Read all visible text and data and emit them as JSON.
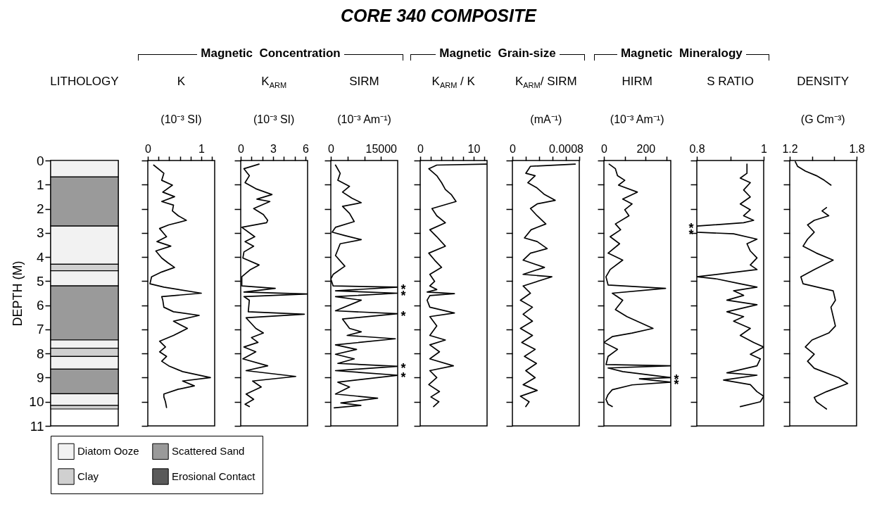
{
  "chart_data": [
    {
      "type": "other",
      "title": "CORE 340 COMPOSITE",
      "annotations": [
        "Magnetic  Concentration",
        "Magnetic  Grain-size",
        "Magnetic  Mineralogy"
      ]
    },
    {
      "type": "bar",
      "stacked": true,
      "title": "LITHOLOGY",
      "ylabel": "DEPTH  (M)",
      "ylim": [
        11,
        0
      ],
      "yticks": [
        0,
        1,
        2,
        3,
        4,
        5,
        6,
        7,
        8,
        9,
        10,
        11
      ],
      "legend": "bottom",
      "categories": [
        null
      ],
      "series": [
        {
          "name": "Diatom Ooze",
          "color": "#f2f2f2",
          "values": [
            0.68
          ]
        },
        {
          "name": "Scattered Sand",
          "color": "#9a9a9a",
          "values": [
            2.04
          ]
        },
        {
          "color": "#f2f2f2",
          "values": [
            1.58
          ]
        },
        {
          "name": "Clay",
          "color": "#d0d0d0",
          "values": [
            0.27
          ]
        },
        {
          "color": "#f2f2f2",
          "values": [
            0.63
          ]
        },
        {
          "color": "#9a9a9a",
          "values": [
            2.24
          ]
        },
        {
          "color": "#f2f2f2",
          "values": [
            0.34
          ]
        },
        {
          "color": "#d0d0d0",
          "values": [
            0.34
          ]
        },
        {
          "color": "#f2f2f2",
          "values": [
            0.53
          ]
        },
        {
          "color": "#9a9a9a",
          "values": [
            1.02
          ]
        },
        {
          "color": "#f2f2f2",
          "values": [
            0.48
          ]
        },
        {
          "color": "#d0d0d0",
          "values": [
            0.15
          ]
        },
        {
          "name": "Erosional Contact",
          "color": "#5a5a5a",
          "values": [
            null
          ]
        }
      ]
    },
    {
      "type": "line",
      "title": "K",
      "xlabel": "(10⁻³ SI)",
      "orientation": "horizontal",
      "tick_labels": "x",
      "xlim": [
        0,
        1.25
      ],
      "xticks": [
        0,
        {
          "value": 0.2,
          "label": null
        },
        {
          "value": 0.4,
          "label": null
        },
        {
          "value": 0.6,
          "label": null
        },
        {
          "value": 0.8,
          "label": null
        },
        1,
        {
          "value": 1.2,
          "label": null
        }
      ],
      "ylim": [
        11,
        0
      ],
      "yticks": [
        0,
        1,
        2,
        3,
        4,
        5,
        6,
        7,
        8,
        9,
        10,
        11
      ],
      "x": [
        0.19,
        0.53,
        0.82,
        1.02,
        1.31,
        1.5,
        1.7,
        1.85,
        2.09,
        2.29,
        2.48,
        2.67,
        2.82,
        3.16,
        3.36,
        3.55,
        3.75,
        4.04,
        4.23,
        4.43,
        4.62,
        4.82,
        5.11,
        5.25,
        5.5,
        5.64,
        5.79,
        6.08,
        6.27,
        6.42,
        6.66,
        6.96,
        7.25,
        7.49,
        7.73,
        7.93,
        8.12,
        8.32,
        8.51,
        8.75,
        9.0,
        9.14,
        9.34,
        9.48,
        9.68,
        9.8,
        10.0,
        10.24
      ],
      "series": [
        {
          "color": "#000000",
          "values": [
            0.11,
            0.3,
            0.26,
            0.46,
            0.28,
            0.5,
            0.26,
            0.48,
            0.46,
            0.57,
            0.72,
            0.39,
            0.22,
            0.35,
            0.17,
            0.43,
            0.15,
            0.26,
            0.37,
            0.5,
            0.26,
            0.07,
            0.04,
            0.3,
            1.0,
            0.26,
            0.28,
            0.3,
            0.48,
            0.96,
            0.48,
            0.74,
            0.48,
            0.22,
            0.33,
            0.22,
            0.35,
            0.26,
            0.39,
            0.65,
            1.17,
            0.65,
            0.87,
            0.57,
            0.3,
            0.3,
            0.33,
            0.35
          ]
        }
      ]
    },
    {
      "type": "line",
      "title": "K$_{ARM}$",
      "xlabel": "(10⁻³ SI)",
      "orientation": "horizontal",
      "tick_labels": "x",
      "xlim": [
        0,
        6.2
      ],
      "xticks": [
        0,
        {
          "value": 1,
          "label": null
        },
        {
          "value": 2,
          "label": null
        },
        3,
        {
          "value": 4,
          "label": null
        },
        {
          "value": 5,
          "label": null
        },
        6
      ],
      "ylim": [
        11,
        0
      ],
      "yticks": [
        0,
        1,
        2,
        3,
        4,
        5,
        6,
        7,
        8,
        9,
        10,
        11
      ],
      "x": [
        0.15,
        0.34,
        0.63,
        0.92,
        1.17,
        1.41,
        1.6,
        1.7,
        1.99,
        2.24,
        2.48,
        2.58,
        2.77,
        3.16,
        3.36,
        3.55,
        3.79,
        4.04,
        4.33,
        4.52,
        4.82,
        5.2,
        5.3,
        5.45,
        5.53,
        5.64,
        5.79,
        6.27,
        6.37,
        6.52,
        6.96,
        7.15,
        7.34,
        7.54,
        7.73,
        7.93,
        8.22,
        8.51,
        8.71,
        8.95,
        9.14,
        9.39,
        9.68,
        9.9,
        10.1,
        10.2
      ],
      "series": [
        {
          "color": "#000000",
          "values": [
            1.7,
            0.3,
            0.8,
            0.4,
            1.4,
            2.9,
            1.5,
            2.7,
            1.2,
            2.1,
            2.5,
            2.4,
            0.1,
            1.3,
            0.4,
            1.2,
            0.3,
            0.2,
            1.7,
            0.9,
            0.1,
            0.1,
            3.2,
            0.3,
            6.2,
            0.3,
            0.8,
            0.7,
            5.9,
            0.5,
            1.4,
            2.1,
            1.0,
            1.6,
            0.3,
            1.4,
            0.2,
            2.5,
            0.5,
            5.1,
            1.1,
            1.9,
            0.5,
            1.2,
            0.4,
            0.8
          ]
        }
      ]
    },
    {
      "type": "line",
      "title": "SIRM",
      "xlabel": "(10⁻³ Am⁻¹)",
      "orientation": "horizontal",
      "tick_labels": "x",
      "xlim": [
        0,
        20000
      ],
      "xticks": [
        0,
        {
          "value": 5000,
          "label": null
        },
        {
          "value": 10000,
          "label": null
        },
        15000
      ],
      "ylim": [
        11,
        0
      ],
      "yticks": [
        0,
        1,
        2,
        3,
        4,
        5,
        6,
        7,
        8,
        9,
        10,
        11
      ],
      "x": [
        0.19,
        0.53,
        0.82,
        1.07,
        1.31,
        1.56,
        1.75,
        1.9,
        2.19,
        2.53,
        2.77,
        2.97,
        3.11,
        3.28,
        3.45,
        3.7,
        3.94,
        4.38,
        4.72,
        4.91,
        5.2,
        5.25,
        5.4,
        5.5,
        5.64,
        5.79,
        6.23,
        6.35,
        6.57,
        6.96,
        7.1,
        7.25,
        7.39,
        7.64,
        7.83,
        8.03,
        8.22,
        8.41,
        8.53,
        8.71,
        8.9,
        9.19,
        9.39,
        9.68,
        9.85,
        10.05,
        10.15,
        10.25
      ],
      "series": [
        {
          "color": "#000000",
          "values": [
            1400,
            2800,
            2100,
            5600,
            3500,
            6300,
            9100,
            3500,
            5600,
            7000,
            1400,
            400,
            4200,
            9100,
            2800,
            2100,
            1400,
            4200,
            700,
            0,
            700,
            20000,
            1400,
            20000,
            1400,
            9100,
            1400,
            20000,
            3500,
            5600,
            9100,
            4900,
            19300,
            1400,
            7700,
            1400,
            7000,
            2100,
            20000,
            1400,
            20000,
            2100,
            5600,
            1400,
            14000,
            3000,
            9000,
            1000
          ]
        }
      ],
      "annotations": [
        {
          "text": "*",
          "x": 20000,
          "y": 5.25
        },
        {
          "text": "*",
          "x": 20000,
          "y": 5.5
        },
        {
          "text": "*",
          "x": 20000,
          "y": 6.35
        },
        {
          "text": "*",
          "x": 20000,
          "y": 8.53
        },
        {
          "text": "*",
          "x": 20000,
          "y": 8.9
        }
      ]
    },
    {
      "type": "line",
      "title": "K$_{ARM}$ / K",
      "orientation": "horizontal",
      "tick_labels": "x",
      "xlim": [
        0,
        12.5
      ],
      "xticks": [
        0,
        {
          "value": 2,
          "label": null
        },
        {
          "value": 4,
          "label": null
        },
        {
          "value": 6,
          "label": null
        },
        {
          "value": 8,
          "label": null
        },
        10,
        {
          "value": 12,
          "label": null
        }
      ],
      "ylim": [
        11,
        0
      ],
      "yticks": [
        0,
        1,
        2,
        3,
        4,
        5,
        6,
        7,
        8,
        9,
        10,
        11
      ],
      "x": [
        0.15,
        0.19,
        0.34,
        0.63,
        0.92,
        1.2,
        1.41,
        1.7,
        1.99,
        2.29,
        2.58,
        2.87,
        3.16,
        3.55,
        3.84,
        4.13,
        4.43,
        4.72,
        5.01,
        5.2,
        5.35,
        5.45,
        5.52,
        5.6,
        5.79,
        6.08,
        6.32,
        6.47,
        6.86,
        7.25,
        7.44,
        7.64,
        7.93,
        8.22,
        8.51,
        8.71,
        9.0,
        9.29,
        9.58,
        9.8,
        10.0,
        10.2
      ],
      "series": [
        {
          "color": "#000000",
          "values": [
            12.4,
            3.1,
            1.6,
            3.1,
            4.0,
            4.7,
            5.8,
            6.7,
            2.2,
            3.1,
            4.7,
            1.8,
            3.1,
            4.7,
            1.6,
            2.7,
            4.0,
            1.8,
            2.7,
            1.8,
            3.1,
            1.3,
            6.4,
            1.8,
            1.3,
            1.8,
            6.4,
            1.8,
            3.1,
            1.8,
            4.7,
            1.8,
            3.6,
            1.8,
            6.2,
            1.8,
            3.1,
            1.6,
            3.6,
            2.0,
            3.5,
            2.5
          ]
        }
      ]
    },
    {
      "type": "line",
      "title": "K$_{ARM}$/ SIRM",
      "xlabel": "(mA⁻¹)",
      "orientation": "horizontal",
      "tick_labels": "x",
      "xlim": [
        0,
        0.001
      ],
      "xticks": [
        0,
        {
          "value": 0.0002,
          "label": null
        },
        {
          "value": 0.0004,
          "label": null
        },
        {
          "value": 0.0006,
          "label": null
        },
        0.0008,
        {
          "value": 0.001,
          "label": null
        }
      ],
      "ylim": [
        11,
        0
      ],
      "yticks": [
        0,
        1,
        2,
        3,
        4,
        5,
        6,
        7,
        8,
        9,
        10,
        11
      ],
      "x": [
        0.15,
        0.24,
        0.53,
        0.63,
        0.92,
        1.12,
        1.41,
        1.65,
        1.8,
        1.99,
        2.29,
        2.63,
        2.87,
        3.21,
        3.36,
        3.65,
        3.84,
        4.13,
        4.43,
        4.72,
        4.82,
        5.2,
        5.5,
        5.79,
        6.08,
        6.37,
        6.66,
        6.96,
        7.25,
        7.54,
        7.83,
        8.12,
        8.41,
        8.71,
        9.0,
        9.29,
        9.53,
        9.77,
        10.0,
        10.2
      ],
      "series": [
        {
          "color": "#000000",
          "values": [
            0.00094,
            0.00027,
            0.0002,
            0.00034,
            0.00023,
            0.00036,
            0.00048,
            0.00064,
            0.00037,
            0.00027,
            0.00037,
            0.0005,
            0.00028,
            0.00018,
            0.00037,
            0.00052,
            0.00027,
            0.00016,
            0.00048,
            0.00016,
            0.00059,
            0.00016,
            0.00027,
            0.00012,
            0.0003,
            0.00016,
            0.0003,
            0.00012,
            0.0003,
            0.00014,
            0.00034,
            0.00018,
            0.00036,
            0.0002,
            0.00034,
            0.00016,
            0.00037,
            0.00012,
            0.00025,
            0.0002
          ]
        }
      ]
    },
    {
      "type": "line",
      "title": "HIRM",
      "xlabel": "(10⁻³ Am⁻¹)",
      "orientation": "horizontal",
      "tick_labels": "x",
      "xlim": [
        0,
        320
      ],
      "xticks": [
        0,
        {
          "value": 100,
          "label": null
        },
        200,
        {
          "value": 300,
          "label": null
        }
      ],
      "ylim": [
        11,
        0
      ],
      "yticks": [
        0,
        1,
        2,
        3,
        4,
        5,
        6,
        7,
        8,
        9,
        10,
        11
      ],
      "x": [
        0.15,
        0.34,
        0.63,
        0.82,
        1.02,
        1.31,
        1.6,
        1.8,
        2.04,
        2.29,
        2.63,
        2.87,
        3.16,
        3.45,
        3.84,
        4.13,
        4.52,
        4.82,
        5.16,
        5.3,
        5.5,
        5.79,
        6.18,
        6.47,
        6.96,
        7.15,
        7.3,
        7.54,
        7.83,
        8.12,
        8.46,
        8.51,
        8.6,
        8.75,
        9.0,
        9.05,
        9.19,
        9.3,
        9.5,
        9.7,
        9.9,
        10.1,
        10.2
      ],
      "series": [
        {
          "color": "#000000",
          "values": [
            25,
            55,
            65,
            100,
            70,
            160,
            90,
            135,
            100,
            120,
            55,
            80,
            30,
            75,
            20,
            90,
            30,
            10,
            20,
            295,
            40,
            90,
            55,
            110,
            235,
            135,
            40,
            0,
            65,
            20,
            10,
            320,
            20,
            90,
            320,
            170,
            320,
            135,
            40,
            20,
            10,
            20,
            40
          ]
        }
      ],
      "annotations": [
        {
          "text": "*",
          "x": 320,
          "y": 9.0
        },
        {
          "text": "*",
          "x": 320,
          "y": 9.19
        }
      ]
    },
    {
      "type": "line",
      "title": "S RATIO",
      "orientation": "horizontal",
      "tick_labels": "x",
      "xlim": [
        0.8,
        1
      ],
      "xticks": [
        0.8,
        {
          "value": 0.9,
          "label": null
        },
        1
      ],
      "ylim": [
        11,
        0
      ],
      "yticks": [
        0,
        1,
        2,
        3,
        4,
        5,
        6,
        7,
        8,
        9,
        10,
        11
      ],
      "x": [
        0.15,
        0.53,
        0.73,
        0.92,
        1.22,
        1.51,
        1.8,
        2.04,
        2.29,
        2.48,
        2.58,
        2.72,
        2.97,
        3.04,
        3.26,
        3.45,
        3.75,
        4.04,
        4.33,
        4.52,
        4.82,
        4.91,
        5.11,
        5.25,
        5.4,
        5.59,
        5.79,
        5.98,
        6.27,
        6.47,
        6.66,
        6.96,
        7.25,
        7.54,
        7.73,
        8.03,
        8.22,
        8.51,
        8.8,
        8.9,
        9.1,
        9.29,
        9.58,
        9.77,
        10.0,
        10.2
      ],
      "series": [
        {
          "color": "#000000",
          "values": [
            0.95,
            0.95,
            0.93,
            0.96,
            0.94,
            0.96,
            0.93,
            0.96,
            0.94,
            0.97,
            0.94,
            0.8,
            0.8,
            0.91,
            0.98,
            0.95,
            0.96,
            0.98,
            0.96,
            0.98,
            0.8,
            0.86,
            0.93,
            0.98,
            0.91,
            0.94,
            0.89,
            0.98,
            0.89,
            0.94,
            0.91,
            0.96,
            0.93,
            0.97,
            1.0,
            0.96,
            0.99,
            0.98,
            0.89,
            0.98,
            0.88,
            0.96,
            0.98,
            1.0,
            0.99,
            0.93
          ]
        }
      ],
      "annotations": [
        {
          "text": "*",
          "x": 0.8,
          "y": 2.72
        },
        {
          "text": "*",
          "x": 0.8,
          "y": 2.97
        }
      ]
    },
    {
      "type": "line",
      "title": "DENSITY",
      "xlabel": "(G Cm⁻³)",
      "orientation": "horizontal",
      "tick_labels": "x",
      "xlim": [
        1.2,
        1.8
      ],
      "xticks": [
        1.2,
        {
          "value": 1.4,
          "label": null
        },
        {
          "value": 1.6,
          "label": null
        },
        1.8
      ],
      "ylim": [
        11,
        0
      ],
      "yticks": [
        0,
        1,
        2,
        3,
        4,
        5,
        6,
        7,
        8,
        9,
        10,
        11
      ],
      "x": [
        0.05,
        0.24,
        0.44,
        0.63,
        0.82,
        1.02,
        1.5,
        1.95,
        2.09,
        2.29,
        2.48,
        2.67,
        2.97,
        3.26,
        3.55,
        3.84,
        4.13,
        4.52,
        4.82,
        5.11,
        5.4,
        5.79,
        6.08,
        6.47,
        6.86,
        7.15,
        7.44,
        7.73,
        8.03,
        8.32,
        8.61,
        9.0,
        9.24,
        9.58,
        9.82,
        10.0,
        10.2,
        10.3
      ],
      "series": [
        {
          "color": "#000000",
          "values": [
            1.25,
            1.27,
            1.34,
            1.44,
            1.51,
            1.57,
            null,
            1.53,
            1.49,
            1.55,
            1.42,
            1.36,
            1.42,
            1.36,
            1.32,
            1.44,
            1.59,
            1.42,
            1.3,
            1.32,
            1.59,
            1.61,
            1.57,
            1.59,
            1.61,
            1.55,
            1.4,
            1.34,
            1.42,
            1.36,
            1.42,
            1.64,
            1.72,
            1.53,
            1.42,
            1.44,
            1.5,
            1.53
          ]
        }
      ]
    }
  ]
}
